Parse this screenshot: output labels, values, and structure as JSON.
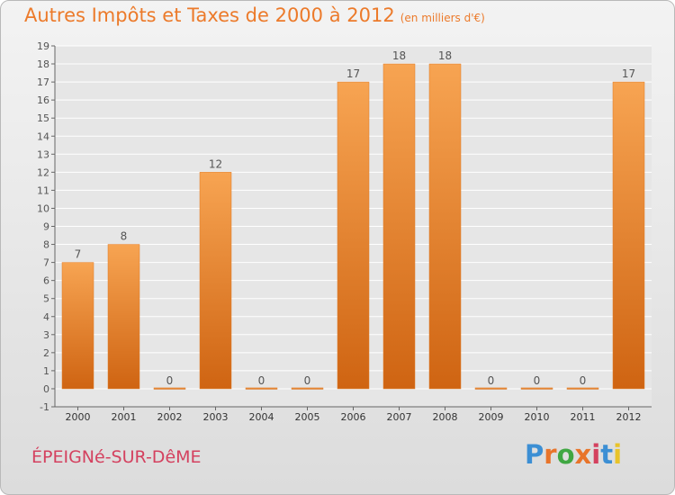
{
  "header": {
    "title": "Autres Impôts et Taxes de 2000 à 2012",
    "unit_note": "(en milliers d'€)"
  },
  "footer": {
    "commune": "ÉPEIGNé-SUR-DêME",
    "logo_text": "Proxiti",
    "logo_colors": [
      "#3c8fd4",
      "#e8742a",
      "#3fa742",
      "#e8742a",
      "#d4415f",
      "#3c8fd4",
      "#e8c32a"
    ]
  },
  "colors": {
    "bar_top": "#f7a452",
    "bar_bottom": "#cf6412",
    "grid": "#ffffff",
    "axis_text": "#555555",
    "title": "#ec7a2a",
    "commune": "#d4415f"
  },
  "chart_data": {
    "type": "bar",
    "categories": [
      "2000",
      "2001",
      "2002",
      "2003",
      "2004",
      "2005",
      "2006",
      "2007",
      "2008",
      "2009",
      "2010",
      "2011",
      "2012"
    ],
    "values": [
      7,
      8,
      0,
      12,
      0,
      0,
      17,
      18,
      18,
      0,
      0,
      0,
      17
    ],
    "data_labels": [
      "7",
      "8",
      "0",
      "12",
      "0",
      "0",
      "17",
      "18",
      "18",
      "0",
      "0",
      "0",
      "17"
    ],
    "ylim": [
      -1,
      19
    ],
    "yticks": [
      "-1",
      "0",
      "1",
      "2",
      "3",
      "4",
      "5",
      "6",
      "7",
      "8",
      "9",
      "10",
      "11",
      "12",
      "13",
      "14",
      "15",
      "16",
      "17",
      "18",
      "19"
    ],
    "title": "Autres Impôts et Taxes de 2000 à 2012",
    "xlabel": "",
    "ylabel": "",
    "grid": true
  }
}
